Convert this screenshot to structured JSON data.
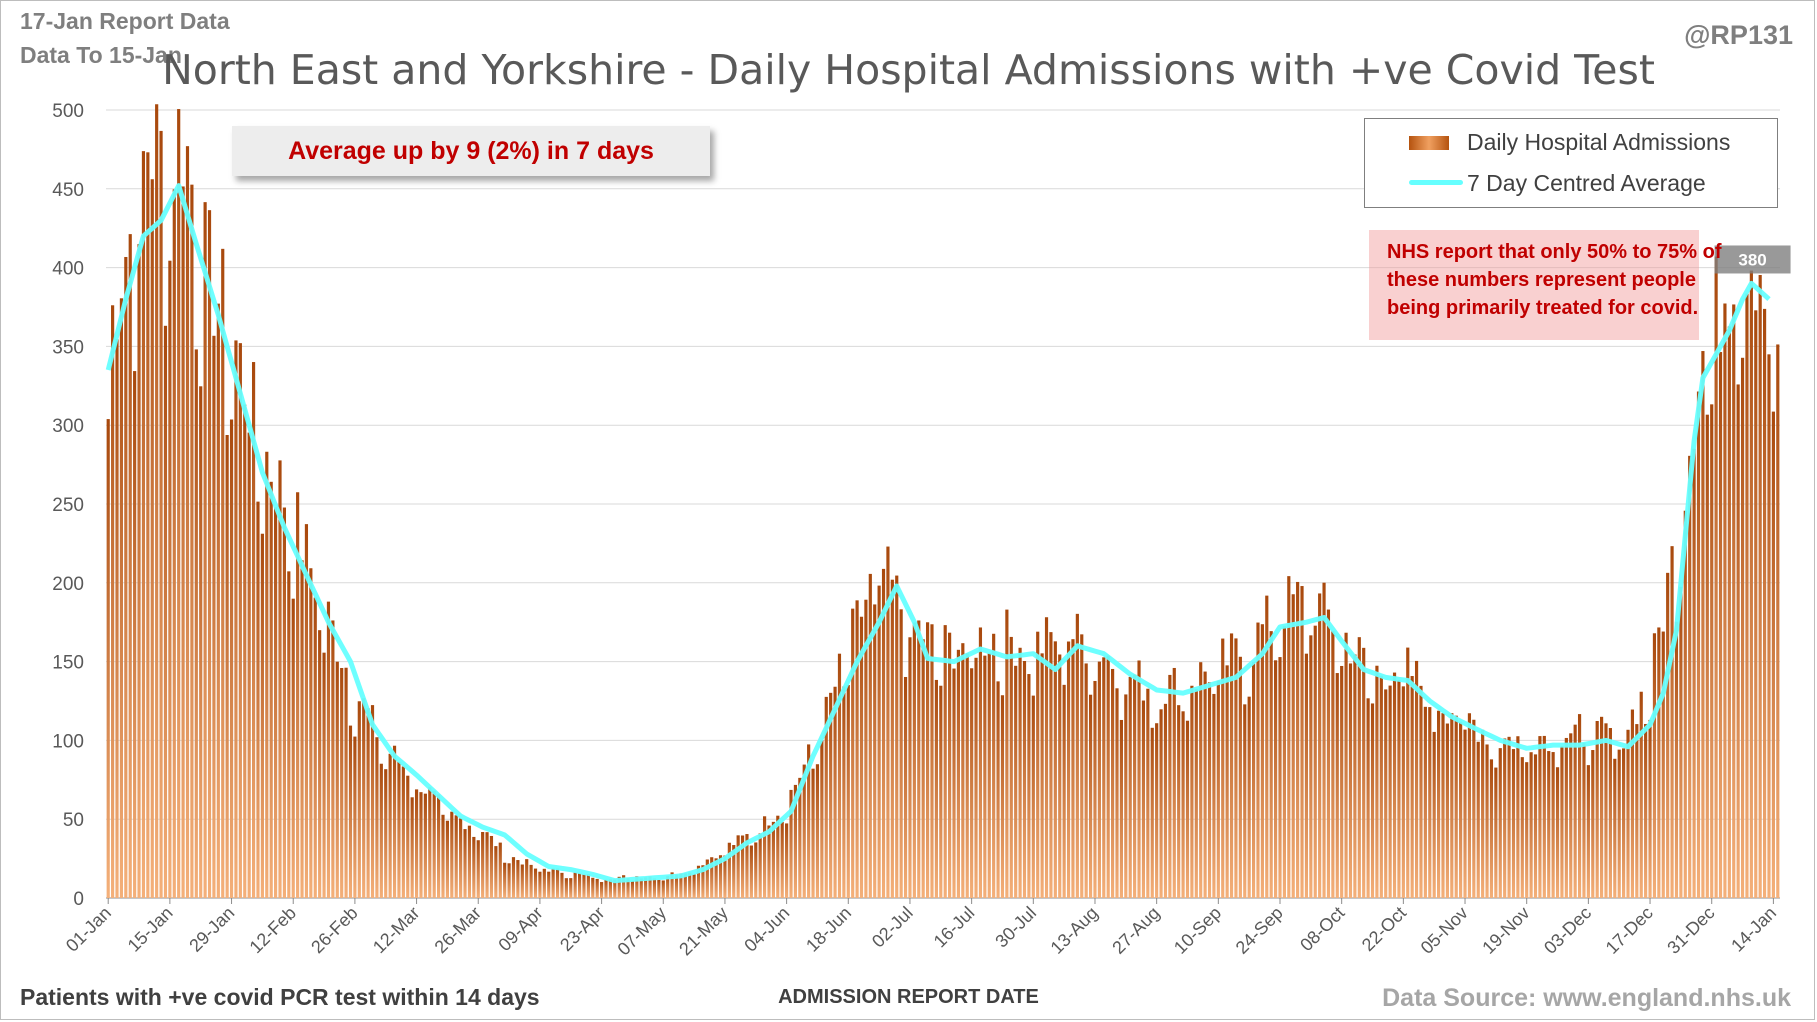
{
  "header": {
    "report_date": "17-Jan Report Data",
    "data_to": "Data To 15-Jan",
    "title": "North East and Yorkshire - Daily Hospital Admissions with +ve Covid Test",
    "handle": "@RP131"
  },
  "callout": {
    "text": "Average up by 9 (2%) in 7 days"
  },
  "legend": {
    "bars": "Daily Hospital Admissions",
    "line": "7 Day Centred Average"
  },
  "note": {
    "lines": [
      "NHS report that only 50% to 75% of",
      "these numbers represent people",
      "being primarily treated for covid."
    ]
  },
  "last_value_label": "380",
  "footer": {
    "left": "Patients with +ve covid PCR test within 14 days",
    "xlabel": "ADMISSION REPORT DATE",
    "source": "Data Source: www.england.nhs.uk"
  },
  "colors": {
    "bar_dark": "#a8480c",
    "bar_light": "#f4b07a",
    "line": "#66ffff",
    "accent_red": "#c00000",
    "grid": "#d9d9d9"
  },
  "chart_data": {
    "type": "bar",
    "title": "North East and Yorkshire - Daily Hospital Admissions with +ve Covid Test",
    "xlabel": "ADMISSION REPORT DATE",
    "ylabel": "",
    "ylim": [
      0,
      500
    ],
    "y_ticks": [
      0,
      50,
      100,
      150,
      200,
      250,
      300,
      350,
      400,
      450,
      500
    ],
    "x_tick_labels": [
      "01-Jan",
      "15-Jan",
      "29-Jan",
      "12-Feb",
      "26-Feb",
      "12-Mar",
      "26-Mar",
      "09-Apr",
      "23-Apr",
      "07-May",
      "21-May",
      "04-Jun",
      "18-Jun",
      "02-Jul",
      "16-Jul",
      "30-Jul",
      "13-Aug",
      "27-Aug",
      "10-Sep",
      "24-Sep",
      "08-Oct",
      "22-Oct",
      "05-Nov",
      "19-Nov",
      "03-Dec",
      "17-Dec",
      "31-Dec",
      "14-Jan"
    ],
    "x_tick_step_days": 14,
    "start_date": "01-Jan",
    "end_date": "15-Jan",
    "grid": true,
    "legend_position": "top-right",
    "series": [
      {
        "name": "Daily Hospital Admissions",
        "type": "bar",
        "anchors": [
          [
            0,
            335
          ],
          [
            3,
            380
          ],
          [
            6,
            405
          ],
          [
            9,
            455
          ],
          [
            13,
            440
          ],
          [
            17,
            460
          ],
          [
            22,
            380
          ],
          [
            28,
            340
          ],
          [
            35,
            270
          ],
          [
            42,
            230
          ],
          [
            49,
            175
          ],
          [
            56,
            125
          ],
          [
            63,
            90
          ],
          [
            70,
            72
          ],
          [
            77,
            50
          ],
          [
            84,
            43
          ],
          [
            91,
            25
          ],
          [
            98,
            18
          ],
          [
            105,
            15
          ],
          [
            112,
            12
          ],
          [
            119,
            13
          ],
          [
            126,
            13
          ],
          [
            133,
            18
          ],
          [
            140,
            30
          ],
          [
            147,
            40
          ],
          [
            154,
            58
          ],
          [
            161,
            95
          ],
          [
            168,
            150
          ],
          [
            175,
            200
          ],
          [
            182,
            165
          ],
          [
            189,
            150
          ],
          [
            196,
            155
          ],
          [
            203,
            158
          ],
          [
            210,
            150
          ],
          [
            217,
            160
          ],
          [
            224,
            152
          ],
          [
            231,
            135
          ],
          [
            238,
            125
          ],
          [
            245,
            130
          ],
          [
            252,
            140
          ],
          [
            259,
            150
          ],
          [
            266,
            175
          ],
          [
            273,
            180
          ],
          [
            280,
            160
          ],
          [
            287,
            135
          ],
          [
            294,
            140
          ],
          [
            301,
            120
          ],
          [
            308,
            110
          ],
          [
            315,
            95
          ],
          [
            322,
            95
          ],
          [
            329,
            100
          ],
          [
            336,
            100
          ],
          [
            343,
            95
          ],
          [
            350,
            130
          ],
          [
            357,
            230
          ],
          [
            361,
            320
          ],
          [
            365,
            350
          ],
          [
            369,
            385
          ],
          [
            372,
            395
          ],
          [
            375,
            380
          ],
          [
            379,
            330
          ]
        ]
      },
      {
        "name": "7 Day Centred Average",
        "type": "line",
        "anchors": [
          [
            0,
            335
          ],
          [
            4,
            380
          ],
          [
            8,
            420
          ],
          [
            12,
            430
          ],
          [
            16,
            452
          ],
          [
            20,
            415
          ],
          [
            25,
            370
          ],
          [
            30,
            320
          ],
          [
            35,
            270
          ],
          [
            40,
            235
          ],
          [
            45,
            205
          ],
          [
            50,
            175
          ],
          [
            55,
            150
          ],
          [
            60,
            110
          ],
          [
            65,
            90
          ],
          [
            70,
            78
          ],
          [
            75,
            65
          ],
          [
            80,
            52
          ],
          [
            85,
            45
          ],
          [
            90,
            40
          ],
          [
            95,
            28
          ],
          [
            100,
            20
          ],
          [
            105,
            18
          ],
          [
            110,
            15
          ],
          [
            115,
            11
          ],
          [
            120,
            12
          ],
          [
            125,
            13
          ],
          [
            130,
            14
          ],
          [
            135,
            18
          ],
          [
            140,
            25
          ],
          [
            145,
            35
          ],
          [
            150,
            42
          ],
          [
            155,
            55
          ],
          [
            160,
            90
          ],
          [
            165,
            120
          ],
          [
            170,
            150
          ],
          [
            175,
            175
          ],
          [
            179,
            198
          ],
          [
            183,
            175
          ],
          [
            186,
            152
          ],
          [
            192,
            150
          ],
          [
            198,
            158
          ],
          [
            204,
            153
          ],
          [
            210,
            155
          ],
          [
            215,
            145
          ],
          [
            220,
            160
          ],
          [
            226,
            155
          ],
          [
            232,
            142
          ],
          [
            238,
            132
          ],
          [
            244,
            130
          ],
          [
            250,
            135
          ],
          [
            256,
            140
          ],
          [
            262,
            155
          ],
          [
            266,
            172
          ],
          [
            272,
            175
          ],
          [
            276,
            178
          ],
          [
            280,
            163
          ],
          [
            285,
            145
          ],
          [
            290,
            140
          ],
          [
            295,
            138
          ],
          [
            300,
            125
          ],
          [
            305,
            115
          ],
          [
            310,
            108
          ],
          [
            316,
            100
          ],
          [
            322,
            95
          ],
          [
            328,
            97
          ],
          [
            334,
            97
          ],
          [
            340,
            100
          ],
          [
            345,
            96
          ],
          [
            350,
            110
          ],
          [
            353,
            130
          ],
          [
            356,
            170
          ],
          [
            358,
            230
          ],
          [
            360,
            290
          ],
          [
            362,
            330
          ],
          [
            365,
            345
          ],
          [
            368,
            360
          ],
          [
            371,
            380
          ],
          [
            373,
            390
          ],
          [
            375,
            385
          ],
          [
            377,
            380
          ]
        ]
      }
    ]
  }
}
